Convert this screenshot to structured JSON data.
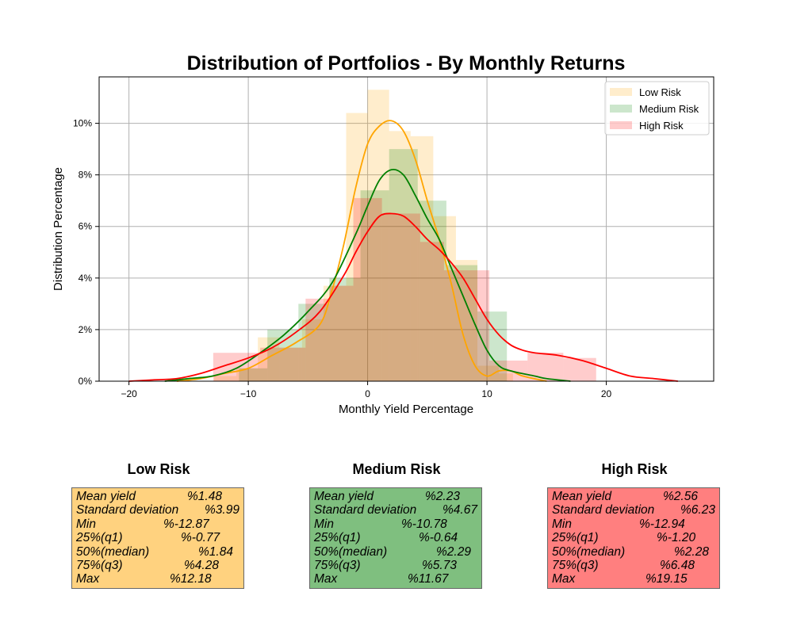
{
  "chart_data": {
    "type": "histogram-kde",
    "title": "Distribution of Portfolios - By Monthly Returns",
    "xlabel": "Monthly Yield Percentage",
    "ylabel": "Distribution Percentage",
    "xlim": [
      -22.5,
      29
    ],
    "ylim": [
      0,
      0.118
    ],
    "xticks": [
      -20,
      -10,
      0,
      10,
      20
    ],
    "xtick_labels": [
      "−20",
      "−10",
      "0",
      "10",
      "20"
    ],
    "yticks": [
      0,
      0.02,
      0.04,
      0.06,
      0.08,
      0.1
    ],
    "ytick_labels": [
      "0%",
      "2%",
      "4%",
      "6%",
      "8%",
      "10%"
    ],
    "grid": true,
    "legend_position": "top-right",
    "series": [
      {
        "name": "Low Risk",
        "hist_color": "#ffa500",
        "kde_color": "#ffa500",
        "bins": [
          {
            "x0": -12.87,
            "x1": -11.0,
            "y": 0.002
          },
          {
            "x0": -11.0,
            "x1": -9.2,
            "y": 0.005
          },
          {
            "x0": -9.2,
            "x1": -7.4,
            "y": 0.017
          },
          {
            "x0": -7.4,
            "x1": -5.5,
            "y": 0.013
          },
          {
            "x0": -5.5,
            "x1": -3.7,
            "y": 0.024
          },
          {
            "x0": -3.7,
            "x1": -1.8,
            "y": 0.037
          },
          {
            "x0": -1.8,
            "x1": 0.0,
            "y": 0.104
          },
          {
            "x0": 0.0,
            "x1": 1.8,
            "y": 0.113
          },
          {
            "x0": 1.8,
            "x1": 3.6,
            "y": 0.097
          },
          {
            "x0": 3.6,
            "x1": 5.5,
            "y": 0.095
          },
          {
            "x0": 5.5,
            "x1": 7.4,
            "y": 0.064
          },
          {
            "x0": 7.4,
            "x1": 9.2,
            "y": 0.047
          },
          {
            "x0": 9.2,
            "x1": 11.0,
            "y": 0.006
          },
          {
            "x0": 11.0,
            "x1": 12.18,
            "y": 0.003
          }
        ],
        "kde": {
          "x": [
            -16,
            -14,
            -12,
            -10,
            -8,
            -6,
            -4,
            -3,
            -2,
            -1,
            0,
            1,
            2,
            3,
            4,
            5,
            6,
            7,
            8,
            9,
            10,
            11,
            12,
            13,
            15
          ],
          "y": [
            0,
            0.001,
            0.003,
            0.005,
            0.01,
            0.015,
            0.022,
            0.035,
            0.053,
            0.075,
            0.092,
            0.099,
            0.101,
            0.097,
            0.086,
            0.07,
            0.055,
            0.038,
            0.018,
            0.006,
            0.002,
            0.004,
            0.004,
            0.002,
            0
          ]
        }
      },
      {
        "name": "Medium Risk",
        "hist_color": "#008000",
        "kde_color": "#008000",
        "bins": [
          {
            "x0": -10.78,
            "x1": -8.4,
            "y": 0.005
          },
          {
            "x0": -8.4,
            "x1": -5.8,
            "y": 0.02
          },
          {
            "x0": -5.8,
            "x1": -3.2,
            "y": 0.03
          },
          {
            "x0": -3.2,
            "x1": -0.6,
            "y": 0.04
          },
          {
            "x0": -0.6,
            "x1": 1.8,
            "y": 0.074
          },
          {
            "x0": 1.8,
            "x1": 4.2,
            "y": 0.09
          },
          {
            "x0": 4.2,
            "x1": 6.6,
            "y": 0.07
          },
          {
            "x0": 6.6,
            "x1": 9.2,
            "y": 0.045
          },
          {
            "x0": 9.2,
            "x1": 11.67,
            "y": 0.027
          }
        ],
        "kde": {
          "x": [
            -17,
            -15,
            -13,
            -11,
            -9,
            -7,
            -5,
            -3,
            -1,
            0,
            1,
            2,
            3,
            4,
            5,
            6,
            7,
            8,
            9,
            10,
            11,
            12,
            14,
            15,
            17
          ],
          "y": [
            0,
            0.001,
            0.002,
            0.005,
            0.011,
            0.018,
            0.027,
            0.038,
            0.057,
            0.068,
            0.078,
            0.082,
            0.08,
            0.072,
            0.063,
            0.055,
            0.044,
            0.033,
            0.022,
            0.012,
            0.006,
            0.004,
            0.002,
            0.001,
            0
          ]
        }
      },
      {
        "name": "High Risk",
        "hist_color": "#ff0000",
        "kde_color": "#ff0000",
        "bins": [
          {
            "x0": -12.94,
            "x1": -9.0,
            "y": 0.011
          },
          {
            "x0": -9.0,
            "x1": -5.2,
            "y": 0.013
          },
          {
            "x0": -5.2,
            "x1": -3.2,
            "y": 0.032
          },
          {
            "x0": -3.2,
            "x1": -1.2,
            "y": 0.037
          },
          {
            "x0": -1.2,
            "x1": 1.2,
            "y": 0.071
          },
          {
            "x0": 1.2,
            "x1": 4.4,
            "y": 0.065
          },
          {
            "x0": 4.4,
            "x1": 6.4,
            "y": 0.054
          },
          {
            "x0": 6.4,
            "x1": 10.2,
            "y": 0.043
          },
          {
            "x0": 10.2,
            "x1": 13.4,
            "y": 0.008
          },
          {
            "x0": 13.4,
            "x1": 16.4,
            "y": 0.011
          },
          {
            "x0": 16.4,
            "x1": 19.15,
            "y": 0.009
          }
        ],
        "kde": {
          "x": [
            -20,
            -18,
            -16,
            -14,
            -12,
            -10,
            -8,
            -6,
            -4,
            -2,
            -1,
            0,
            1,
            2,
            3,
            4,
            5,
            6,
            7,
            8,
            9,
            10,
            11,
            12,
            13,
            14,
            16,
            18,
            20,
            22,
            24,
            26
          ],
          "y": [
            0,
            0.0005,
            0.001,
            0.003,
            0.006,
            0.009,
            0.013,
            0.019,
            0.027,
            0.041,
            0.05,
            0.058,
            0.064,
            0.065,
            0.064,
            0.06,
            0.055,
            0.051,
            0.046,
            0.04,
            0.032,
            0.024,
            0.018,
            0.014,
            0.012,
            0.011,
            0.01,
            0.008,
            0.005,
            0.002,
            0.001,
            0
          ]
        }
      }
    ]
  },
  "stats": [
    {
      "title": "Low Risk",
      "bg": "#ffd27f",
      "rows": [
        {
          "label": "Mean yield",
          "value": "%1.48"
        },
        {
          "label": "Standard deviation",
          "value": "%3.99"
        },
        {
          "label": "Min",
          "value": "%-12.87"
        },
        {
          "label": "25%(q1)",
          "value": "%-0.77"
        },
        {
          "label": "50%(median)",
          "value": "%1.84"
        },
        {
          "label": "75%(q3)",
          "value": "%4.28"
        },
        {
          "label": "Max",
          "value": "%12.18"
        }
      ]
    },
    {
      "title": "Medium Risk",
      "bg": "#7fbf7f",
      "rows": [
        {
          "label": "Mean yield",
          "value": "%2.23"
        },
        {
          "label": "Standard deviation",
          "value": "%4.67"
        },
        {
          "label": "Min",
          "value": "%-10.78"
        },
        {
          "label": "25%(q1)",
          "value": "%-0.64"
        },
        {
          "label": "50%(median)",
          "value": "%2.29"
        },
        {
          "label": "75%(q3)",
          "value": "%5.73"
        },
        {
          "label": "Max",
          "value": "%11.67"
        }
      ]
    },
    {
      "title": "High Risk",
      "bg": "#ff7f7f",
      "rows": [
        {
          "label": "Mean yield",
          "value": "%2.56"
        },
        {
          "label": "Standard deviation",
          "value": "%6.23"
        },
        {
          "label": "Min",
          "value": "%-12.94"
        },
        {
          "label": "25%(q1)",
          "value": "%-1.20"
        },
        {
          "label": "50%(median)",
          "value": "%2.28"
        },
        {
          "label": "75%(q3)",
          "value": "%6.48"
        },
        {
          "label": "Max",
          "value": "%19.15"
        }
      ]
    }
  ]
}
